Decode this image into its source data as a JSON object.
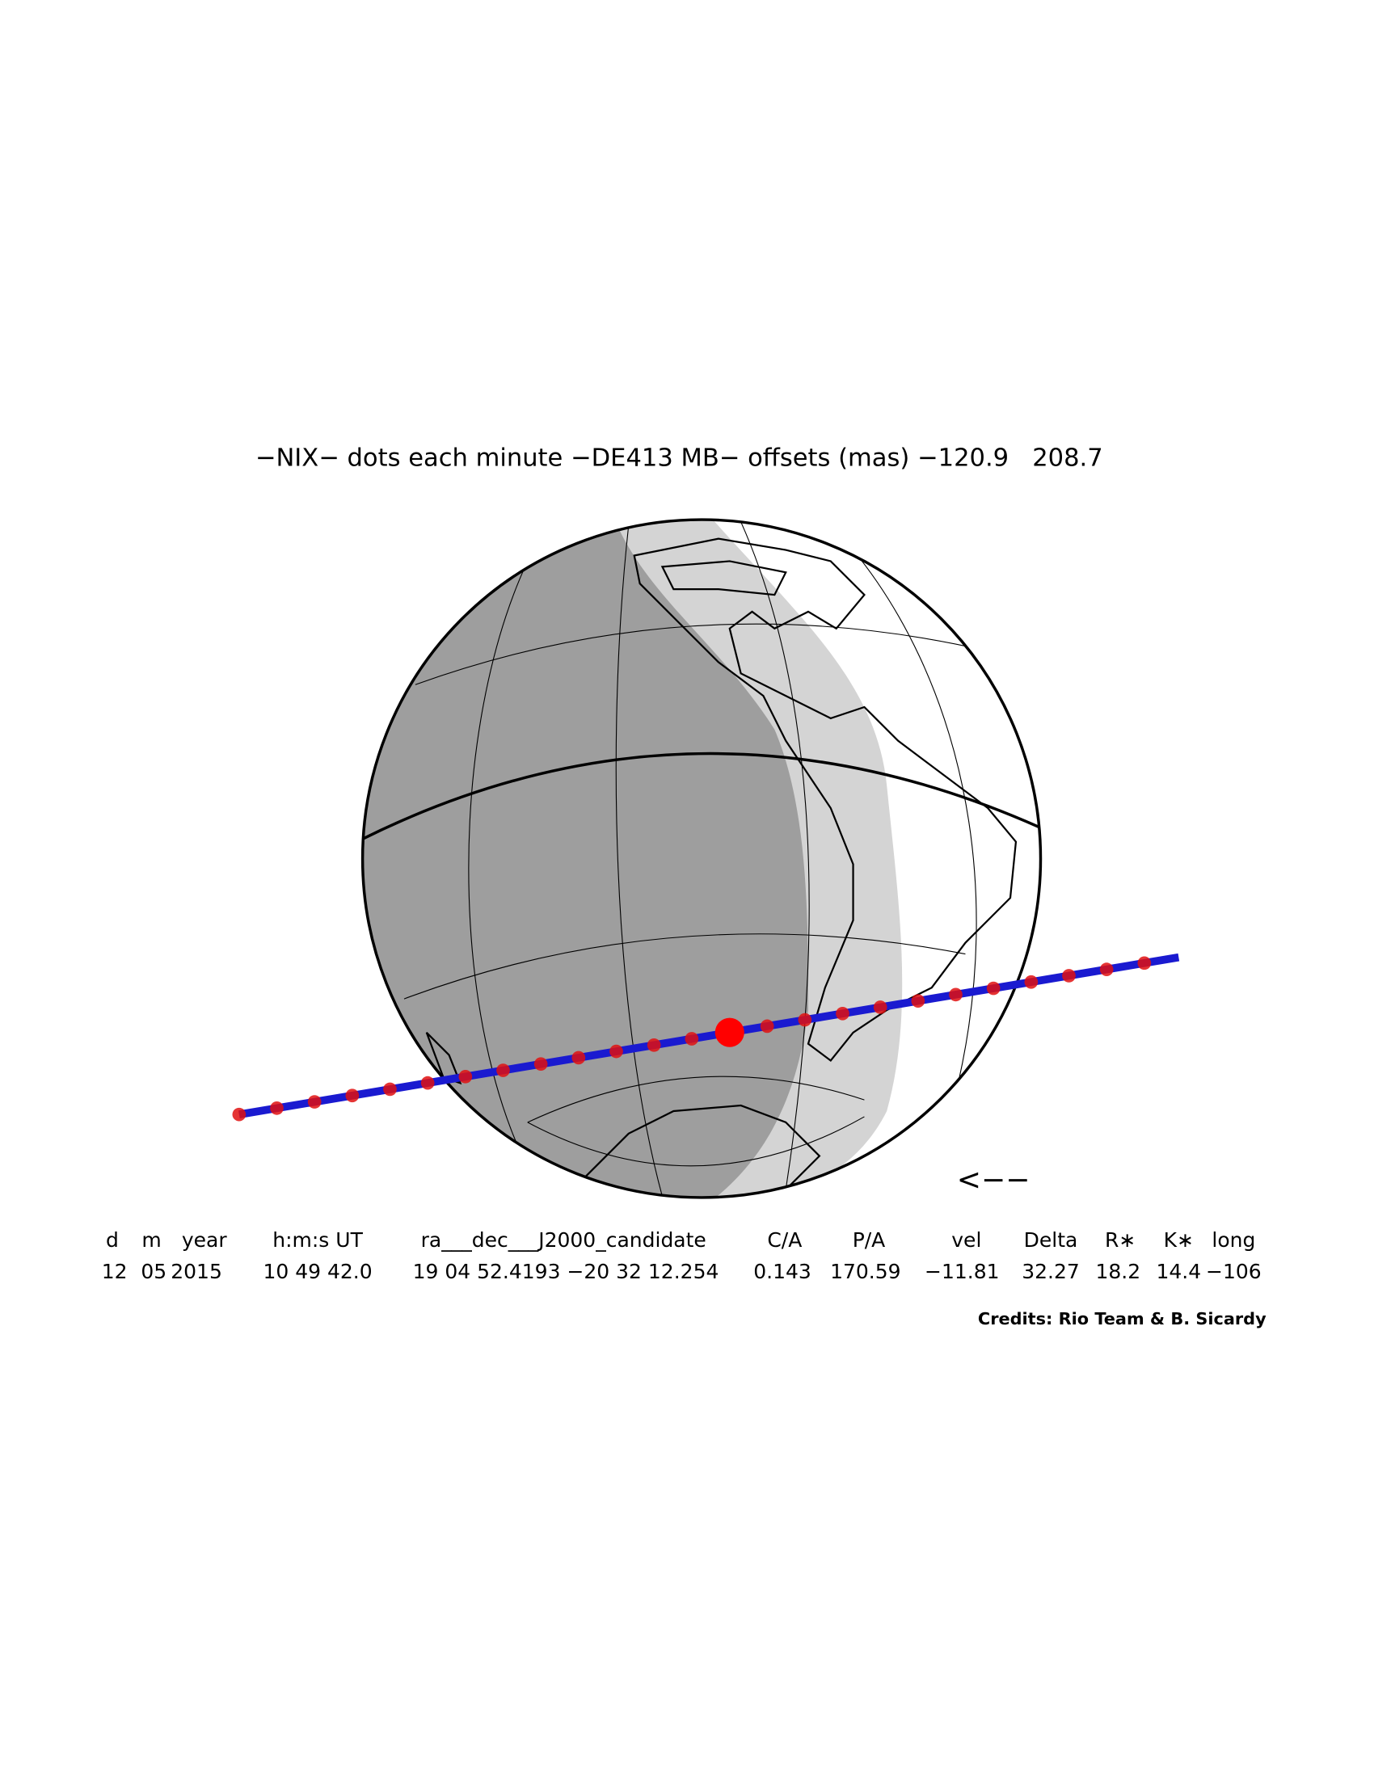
{
  "title": "−NIX− dots each minute −DE413 MB− offsets (mas) −120.9   208.7",
  "direction_arrow": "<−−",
  "table": {
    "headers": [
      "d",
      "m",
      "year",
      "h:m:s UT",
      "ra___dec___J2000_candidate",
      "C/A",
      "P/A",
      "vel",
      "Delta",
      "R∗",
      "K∗",
      "long"
    ],
    "rows": [
      [
        "12",
        "05",
        "2015",
        "10 49 42.0",
        "19 04 52.4193 −20 32 12.254",
        "0.143",
        "170.59",
        "−11.81",
        "32.27",
        "18.2",
        "14.4",
        "−106"
      ]
    ]
  },
  "credits": "Credits: Rio Team & B. Sicardy"
}
